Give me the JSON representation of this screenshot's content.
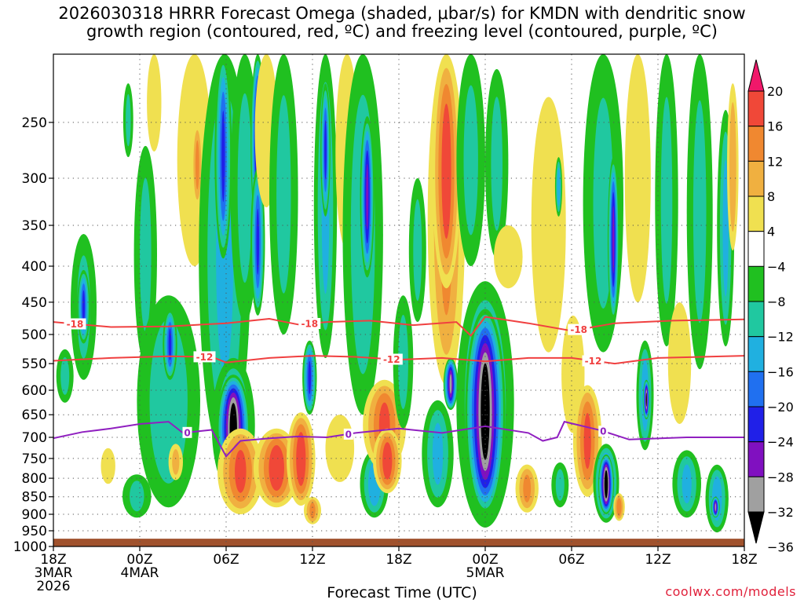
{
  "chart_data": {
    "type": "heatmap",
    "title_line1": "2026030318 HRRR Forecast Omega (shaded, μbar/s) for KMDN with dendritic snow",
    "title_line2": "growth region (contoured, red, ºC) and freezing level (contoured, purple, ºC)",
    "xlabel": "Forecast Time (UTC)",
    "ylabel": "",
    "credit": "coolwx.com/models",
    "y_axis": {
      "range": [
        200,
        1000
      ],
      "ticks": [
        {
          "value": 250,
          "label": "250"
        },
        {
          "value": 300,
          "label": "300"
        },
        {
          "value": 350,
          "label": "350"
        },
        {
          "value": 400,
          "label": "400"
        },
        {
          "value": 450,
          "label": "450"
        },
        {
          "value": 500,
          "label": "500"
        },
        {
          "value": 550,
          "label": "550"
        },
        {
          "value": 600,
          "label": "600"
        },
        {
          "value": 650,
          "label": "650"
        },
        {
          "value": 700,
          "label": "700"
        },
        {
          "value": 750,
          "label": "750"
        },
        {
          "value": 800,
          "label": "800"
        },
        {
          "value": 850,
          "label": "850"
        },
        {
          "value": 900,
          "label": "900"
        },
        {
          "value": 950,
          "label": "950"
        },
        {
          "value": 1000,
          "label": "1000"
        }
      ]
    },
    "x_axis": {
      "range_hours": [
        0,
        48
      ],
      "ticks": [
        {
          "hour": 0,
          "line1": "18Z",
          "line2": "3MAR",
          "line3": "2026"
        },
        {
          "hour": 6,
          "line1": "00Z",
          "line2": "4MAR",
          "line3": ""
        },
        {
          "hour": 12,
          "line1": "06Z",
          "line2": "",
          "line3": ""
        },
        {
          "hour": 18,
          "line1": "12Z",
          "line2": "",
          "line3": ""
        },
        {
          "hour": 24,
          "line1": "18Z",
          "line2": "",
          "line3": ""
        },
        {
          "hour": 30,
          "line1": "00Z",
          "line2": "5MAR",
          "line3": ""
        },
        {
          "hour": 36,
          "line1": "06Z",
          "line2": "",
          "line3": ""
        },
        {
          "hour": 42,
          "line1": "12Z",
          "line2": "",
          "line3": ""
        },
        {
          "hour": 48,
          "line1": "18Z",
          "line2": "",
          "line3": ""
        }
      ]
    },
    "colorbar": {
      "labels": [
        "20",
        "16",
        "12",
        "8",
        "4",
        "−4",
        "−8",
        "−12",
        "−16",
        "−20",
        "−24",
        "−28",
        "−32",
        "−36"
      ],
      "levels": [
        20,
        16,
        12,
        8,
        4,
        -4,
        -8,
        -12,
        -16,
        -20,
        -24,
        -28,
        -32,
        -36
      ],
      "colors": [
        "#f0186a",
        "#f04838",
        "#f08830",
        "#f0b040",
        "#f0e050",
        "#ffffff",
        "#20c020",
        "#20c8a0",
        "#20b0e0",
        "#2070f0",
        "#2020e8",
        "#8010c0",
        "#a0a0a0",
        "#000000"
      ],
      "top_color": "#f0186a",
      "bottom_color": "#000000"
    },
    "ground_pressure": 975,
    "omega_cells": [
      {
        "t": 0.8,
        "p": 575,
        "wt": 0.6,
        "wp": 100,
        "v": -8
      },
      {
        "t": 2.1,
        "p": 470,
        "wt": 0.9,
        "wp": 220,
        "v": -8
      },
      {
        "t": 2.1,
        "p": 460,
        "wt": 0.45,
        "wp": 110,
        "v": -20
      },
      {
        "t": 3.8,
        "p": 770,
        "wt": 0.5,
        "wp": 90,
        "v": 6
      },
      {
        "t": 5.2,
        "p": 250,
        "wt": 0.35,
        "wp": 60,
        "v": -8
      },
      {
        "t": 5.8,
        "p": 850,
        "wt": 1.0,
        "wp": 120,
        "v": -8
      },
      {
        "t": 6.4,
        "p": 410,
        "wt": 0.8,
        "wp": 280,
        "v": -8
      },
      {
        "t": 7.0,
        "p": 220,
        "wt": 0.5,
        "wp": 110,
        "v": 6
      },
      {
        "t": 8.0,
        "p": 660,
        "wt": 2.2,
        "wp": 440,
        "v": -10
      },
      {
        "t": 8.1,
        "p": 520,
        "wt": 0.5,
        "wp": 120,
        "v": -20
      },
      {
        "t": 8.5,
        "p": 760,
        "wt": 0.5,
        "wp": 90,
        "v": 8
      },
      {
        "t": 9.8,
        "p": 300,
        "wt": 1.2,
        "wp": 200,
        "v": 6
      },
      {
        "t": 10.0,
        "p": 290,
        "wt": 0.4,
        "wp": 80,
        "v": 12
      },
      {
        "t": 11.9,
        "p": 470,
        "wt": 1.8,
        "wp": 560,
        "v": -12
      },
      {
        "t": 11.8,
        "p": 290,
        "wt": 0.6,
        "wp": 200,
        "v": -20
      },
      {
        "t": 12.5,
        "p": 690,
        "wt": 1.5,
        "wp": 300,
        "v": -14
      },
      {
        "t": 12.5,
        "p": 690,
        "wt": 1.15,
        "wp": 240,
        "v": -36
      },
      {
        "t": 13.0,
        "p": 790,
        "wt": 1.6,
        "wp": 220,
        "v": 16
      },
      {
        "t": 13.3,
        "p": 330,
        "wt": 1.0,
        "wp": 300,
        "v": -8
      },
      {
        "t": 14.2,
        "p": 270,
        "wt": 0.5,
        "wp": 170,
        "v": -28
      },
      {
        "t": 14.2,
        "p": 380,
        "wt": 0.5,
        "wp": 180,
        "v": -20
      },
      {
        "t": 14.8,
        "p": 250,
        "wt": 0.8,
        "wp": 160,
        "v": 6
      },
      {
        "t": 15.5,
        "p": 780,
        "wt": 1.6,
        "wp": 200,
        "v": 18
      },
      {
        "t": 16.0,
        "p": 350,
        "wt": 1.0,
        "wp": 300,
        "v": -8
      },
      {
        "t": 17.2,
        "p": 760,
        "wt": 1.0,
        "wp": 230,
        "v": 18
      },
      {
        "t": 17.8,
        "p": 580,
        "wt": 0.5,
        "wp": 140,
        "v": -20
      },
      {
        "t": 18.0,
        "p": 890,
        "wt": 0.6,
        "wp": 80,
        "v": 12
      },
      {
        "t": 18.9,
        "p": 360,
        "wt": 0.8,
        "wp": 360,
        "v": -12
      },
      {
        "t": 18.9,
        "p": 280,
        "wt": 0.35,
        "wp": 120,
        "v": -20
      },
      {
        "t": 19.9,
        "p": 730,
        "wt": 1.0,
        "wp": 160,
        "v": 6
      },
      {
        "t": 20.4,
        "p": 270,
        "wt": 0.8,
        "wp": 220,
        "v": 6
      },
      {
        "t": 21.5,
        "p": 420,
        "wt": 1.4,
        "wp": 460,
        "v": -10
      },
      {
        "t": 21.8,
        "p": 330,
        "wt": 0.5,
        "wp": 170,
        "v": -24
      },
      {
        "t": 22.3,
        "p": 820,
        "wt": 1.0,
        "wp": 180,
        "v": -14
      },
      {
        "t": 23.0,
        "p": 680,
        "wt": 1.5,
        "wp": 200,
        "v": 16
      },
      {
        "t": 23.2,
        "p": 760,
        "wt": 1.0,
        "wp": 160,
        "v": 18
      },
      {
        "t": 24.3,
        "p": 560,
        "wt": 0.7,
        "wp": 240,
        "v": -8
      },
      {
        "t": 25.3,
        "p": 390,
        "wt": 0.6,
        "wp": 180,
        "v": -8
      },
      {
        "t": 26.7,
        "p": 750,
        "wt": 1.1,
        "wp": 260,
        "v": -12
      },
      {
        "t": 27.3,
        "p": 370,
        "wt": 1.3,
        "wp": 440,
        "v": 12
      },
      {
        "t": 27.3,
        "p": 300,
        "wt": 1.0,
        "wp": 260,
        "v": 18
      },
      {
        "t": 27.6,
        "p": 590,
        "wt": 0.5,
        "wp": 100,
        "v": -28
      },
      {
        "t": 29.0,
        "p": 300,
        "wt": 1.0,
        "wp": 200,
        "v": -8
      },
      {
        "t": 30.0,
        "p": 680,
        "wt": 2.0,
        "wp": 520,
        "v": -14
      },
      {
        "t": 30.0,
        "p": 680,
        "wt": 1.4,
        "wp": 440,
        "v": -36
      },
      {
        "t": 30.8,
        "p": 300,
        "wt": 0.8,
        "wp": 180,
        "v": -8
      },
      {
        "t": 31.6,
        "p": 390,
        "wt": 1.0,
        "wp": 80,
        "v": 6
      },
      {
        "t": 32.9,
        "p": 830,
        "wt": 0.8,
        "wp": 130,
        "v": 12
      },
      {
        "t": 34.4,
        "p": 380,
        "wt": 1.2,
        "wp": 300,
        "v": 6
      },
      {
        "t": 35.1,
        "p": 310,
        "wt": 0.25,
        "wp": 60,
        "v": -14
      },
      {
        "t": 35.2,
        "p": 820,
        "wt": 0.6,
        "wp": 120,
        "v": -8
      },
      {
        "t": 36.1,
        "p": 580,
        "wt": 0.8,
        "wp": 220,
        "v": 6
      },
      {
        "t": 37.1,
        "p": 720,
        "wt": 1.0,
        "wp": 260,
        "v": 16
      },
      {
        "t": 38.2,
        "p": 340,
        "wt": 1.4,
        "wp": 380,
        "v": -8
      },
      {
        "t": 38.4,
        "p": 820,
        "wt": 0.9,
        "wp": 210,
        "v": -20
      },
      {
        "t": 38.4,
        "p": 820,
        "wt": 0.55,
        "wp": 160,
        "v": -36
      },
      {
        "t": 38.9,
        "p": 380,
        "wt": 0.4,
        "wp": 200,
        "v": -24
      },
      {
        "t": 39.3,
        "p": 880,
        "wt": 0.4,
        "wp": 80,
        "v": 14
      },
      {
        "t": 40.6,
        "p": 300,
        "wt": 0.9,
        "wp": 300,
        "v": 6
      },
      {
        "t": 41.1,
        "p": 620,
        "wt": 0.6,
        "wp": 220,
        "v": -14
      },
      {
        "t": 41.2,
        "p": 620,
        "wt": 0.25,
        "wp": 80,
        "v": -32
      },
      {
        "t": 42.6,
        "p": 340,
        "wt": 0.8,
        "wp": 360,
        "v": -8
      },
      {
        "t": 43.5,
        "p": 560,
        "wt": 0.8,
        "wp": 220,
        "v": 6
      },
      {
        "t": 44.0,
        "p": 820,
        "wt": 1.0,
        "wp": 180,
        "v": -12
      },
      {
        "t": 44.9,
        "p": 380,
        "wt": 0.9,
        "wp": 360,
        "v": -8
      },
      {
        "t": 46.1,
        "p": 860,
        "wt": 0.8,
        "wp": 190,
        "v": -14
      },
      {
        "t": 46.0,
        "p": 880,
        "wt": 0.3,
        "wp": 60,
        "v": -28
      },
      {
        "t": 46.7,
        "p": 380,
        "wt": 0.6,
        "wp": 280,
        "v": -12
      },
      {
        "t": 47.2,
        "p": 300,
        "wt": 0.4,
        "wp": 160,
        "v": 10
      }
    ],
    "contours": [
      {
        "name": "dgz-minus-18",
        "label": "-18",
        "color": "#f04040",
        "label_hours": [
          1.5,
          17.8,
          36.5
        ],
        "points": [
          [
            0,
            480
          ],
          [
            4,
            488
          ],
          [
            8,
            487
          ],
          [
            12,
            482
          ],
          [
            15,
            475
          ],
          [
            17,
            484
          ],
          [
            19,
            480
          ],
          [
            22,
            478
          ],
          [
            25,
            485
          ],
          [
            28,
            480
          ],
          [
            29,
            502
          ],
          [
            30,
            472
          ],
          [
            33,
            482
          ],
          [
            36,
            494
          ],
          [
            39,
            482
          ],
          [
            43,
            478
          ],
          [
            48,
            476
          ]
        ]
      },
      {
        "name": "dgz-minus-12",
        "label": "-12",
        "color": "#f04040",
        "label_hours": [
          10.5,
          23.5,
          37.5
        ],
        "points": [
          [
            0,
            545
          ],
          [
            4,
            540
          ],
          [
            8,
            537
          ],
          [
            11,
            538
          ],
          [
            12,
            548
          ],
          [
            15,
            540
          ],
          [
            18,
            536
          ],
          [
            21,
            538
          ],
          [
            24,
            543
          ],
          [
            27,
            540
          ],
          [
            30,
            546
          ],
          [
            33,
            540
          ],
          [
            36,
            540
          ],
          [
            39,
            550
          ],
          [
            42,
            540
          ],
          [
            45,
            538
          ],
          [
            48,
            536
          ]
        ]
      },
      {
        "name": "freezing-level-0",
        "label": "0",
        "color": "#9020c0",
        "label_hours": [
          9.3,
          20.5,
          38.2
        ],
        "points": [
          [
            0,
            702
          ],
          [
            2,
            688
          ],
          [
            4,
            680
          ],
          [
            6,
            670
          ],
          [
            8,
            665
          ],
          [
            9,
            690
          ],
          [
            11,
            683
          ],
          [
            12,
            745
          ],
          [
            13,
            708
          ],
          [
            15,
            702
          ],
          [
            17,
            698
          ],
          [
            19,
            700
          ],
          [
            21,
            690
          ],
          [
            24,
            680
          ],
          [
            27,
            690
          ],
          [
            30,
            675
          ],
          [
            33,
            690
          ],
          [
            34,
            708
          ],
          [
            35,
            700
          ],
          [
            35.5,
            665
          ],
          [
            38,
            684
          ],
          [
            40,
            705
          ],
          [
            44,
            700
          ],
          [
            48,
            700
          ]
        ]
      }
    ]
  }
}
